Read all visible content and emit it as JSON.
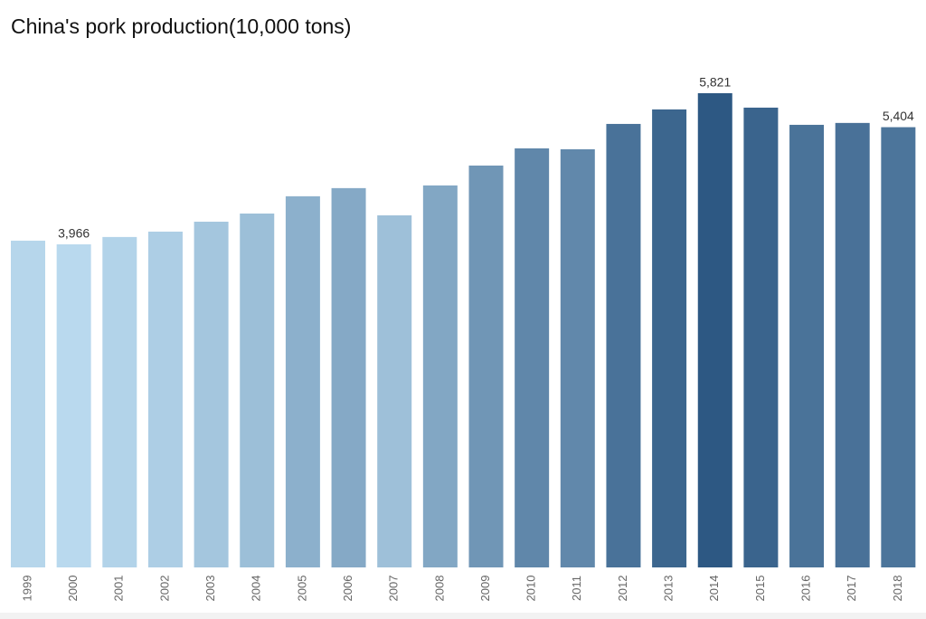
{
  "chart_data": {
    "type": "bar",
    "title": "China's pork production(10,000 tons)",
    "categories": [
      "1999",
      "2000",
      "2001",
      "2002",
      "2003",
      "2004",
      "2005",
      "2006",
      "2007",
      "2008",
      "2009",
      "2010",
      "2011",
      "2012",
      "2013",
      "2014",
      "2015",
      "2016",
      "2017",
      "2018"
    ],
    "values": [
      4011,
      3966,
      4056,
      4122,
      4244,
      4344,
      4556,
      4656,
      4322,
      4689,
      4933,
      5144,
      5133,
      5444,
      5622,
      5821,
      5644,
      5433,
      5456,
      5404
    ],
    "value_labels": [
      null,
      "3,966",
      null,
      null,
      null,
      null,
      null,
      null,
      null,
      null,
      null,
      null,
      null,
      null,
      null,
      "5,821",
      null,
      null,
      null,
      "5,404"
    ],
    "color_range": [
      "#b9d9ee",
      "#2d5883"
    ]
  }
}
